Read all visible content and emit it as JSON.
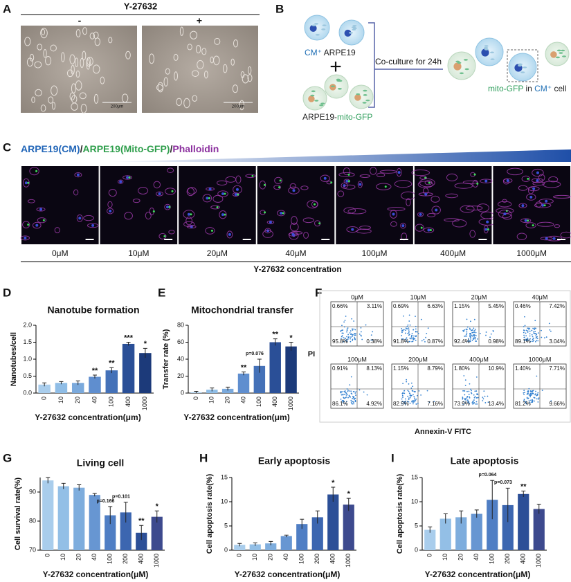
{
  "panel_a": {
    "label": "A",
    "title": "Y-27632",
    "minus": "-",
    "plus": "+",
    "scale_bars": [
      "200μm",
      "200μm"
    ]
  },
  "panel_b": {
    "label": "B",
    "cm_cells": [
      {
        "text": "CM⁺",
        "color": "#1f6fb5"
      },
      {
        "text": " ARPE19",
        "color": "#222222"
      }
    ],
    "gfp_cells": [
      {
        "text": "ARPE19-",
        "color": "#222222"
      },
      {
        "text": "mito-GFP",
        "color": "#2e9e5b"
      }
    ],
    "step": "Co-culture for 24h",
    "result": [
      {
        "text": "mito-GFP",
        "color": "#2e9e5b"
      },
      {
        "text": " in ",
        "color": "#222222"
      },
      {
        "text": "CM⁺",
        "color": "#1f6fb5"
      },
      {
        "text": " cell",
        "color": "#222222"
      }
    ]
  },
  "panel_c": {
    "label": "C",
    "legend": [
      {
        "text": "ARPE19(CM)",
        "color": "#2266b8"
      },
      {
        "text": "/",
        "color": "#222222"
      },
      {
        "text": "ARPE19(Mito-GFP)",
        "color": "#2e9e4b"
      },
      {
        "text": "/",
        "color": "#222222"
      },
      {
        "text": "Phalloidin",
        "color": "#8b2f9e"
      }
    ],
    "concentrations": [
      "0μM",
      "10μM",
      "20μM",
      "40μM",
      "100μM",
      "400μM",
      "1000μM"
    ],
    "xlabel": "Y-27632 concentration"
  },
  "panel_f": {
    "label": "F",
    "ylabel": "PI",
    "xlabel": "Annexin-V FITC",
    "plots": [
      {
        "title": "0μM",
        "quadrants": [
          "0.66%",
          "3.11%",
          "95.8%",
          "0.38%"
        ]
      },
      {
        "title": "10μM",
        "quadrants": [
          "0.69%",
          "6.63%",
          "91.8%",
          "0.87%"
        ]
      },
      {
        "title": "20μM",
        "quadrants": [
          "1.15%",
          "5.45%",
          "92.4%",
          "0.98%"
        ]
      },
      {
        "title": "40μM",
        "quadrants": [
          "0.46%",
          "7.42%",
          "89.1%",
          "3.04%"
        ]
      },
      {
        "title": "100μM",
        "quadrants": [
          "0.91%",
          "8.13%",
          "86.1%",
          "4.92%"
        ]
      },
      {
        "title": "200μM",
        "quadrants": [
          "1.15%",
          "8.79%",
          "82.9%",
          "7.16%"
        ]
      },
      {
        "title": "400μM",
        "quadrants": [
          "1.80%",
          "10.9%",
          "73.9%",
          "13.4%"
        ]
      },
      {
        "title": "1000μM",
        "quadrants": [
          "1.40%",
          "7.71%",
          "81.2%",
          "9.66%"
        ]
      }
    ]
  },
  "chart_data": [
    {
      "type": "bar",
      "label": "D",
      "title": "Nanotube formation",
      "ylabel": "Nanotubes/cell",
      "xlabel": "Y-27632 concentration(μm)",
      "categories": [
        "0",
        "10",
        "20",
        "40",
        "100",
        "400",
        "1000"
      ],
      "values": [
        0.25,
        0.3,
        0.3,
        0.48,
        0.67,
        1.45,
        1.18
      ],
      "errors": [
        0.05,
        0.04,
        0.06,
        0.05,
        0.08,
        0.05,
        0.14
      ],
      "colors": [
        "#a9cdec",
        "#8fbde6",
        "#7aa9dc",
        "#5f8ecf",
        "#4471b8",
        "#2a4f97",
        "#1c3a7a"
      ],
      "annotations": [
        null,
        null,
        null,
        "**",
        "**",
        "***",
        "*"
      ],
      "ylim": [
        0,
        2.0
      ],
      "yticks": [
        {
          "value": 0,
          "label": "0.0"
        },
        0.5,
        {
          "value": 1.0,
          "label": "1.0"
        },
        1.5,
        {
          "value": 2.0,
          "label": "2.0"
        }
      ]
    },
    {
      "type": "bar",
      "label": "E",
      "title": "Mitochondrial transfer",
      "ylabel": "Transfer rate (%)",
      "xlabel": "Y-27632 concentration(μm)",
      "categories": [
        "0",
        "10",
        "20",
        "40",
        "100",
        "400",
        "1000"
      ],
      "values": [
        1,
        4,
        5,
        23,
        32,
        60,
        55
      ],
      "errors": [
        1,
        2,
        2,
        2,
        8,
        4,
        5
      ],
      "colors": [
        "#a9cdec",
        "#8fbde6",
        "#7aa9dc",
        "#5f8ecf",
        "#4471b8",
        "#2a4f97",
        "#1c3a7a"
      ],
      "annotations": [
        null,
        null,
        null,
        "**",
        "p=0.076",
        "**",
        "*"
      ],
      "ylim": [
        0,
        80
      ],
      "yticks": [
        0,
        20,
        40,
        60,
        80
      ]
    },
    {
      "type": "bar",
      "label": "G",
      "title": "Living cell",
      "ylabel": "Cell survival rate(%)",
      "xlabel": "Y-27632 concentration(μM)",
      "categories": [
        "0",
        "10",
        "20",
        "40",
        "100",
        "200",
        "400",
        "1000"
      ],
      "values": [
        94,
        92,
        91.5,
        89,
        82,
        83,
        76,
        81.5
      ],
      "errors": [
        1,
        1,
        1,
        0.5,
        3,
        3.5,
        2.5,
        2
      ],
      "colors": [
        "#a9cdec",
        "#93bfe6",
        "#7eaddd",
        "#6796d2",
        "#4f7ec4",
        "#3c66b0",
        "#2c4f97",
        "#3d4a8e"
      ],
      "annotations": [
        null,
        null,
        null,
        null,
        "p=0.166",
        "p=0.101",
        "**",
        "*"
      ],
      "ylim": [
        70,
        95
      ],
      "yticks": [
        70,
        80,
        90
      ]
    },
    {
      "type": "bar",
      "label": "H",
      "title": "Early apoptosis",
      "ylabel": "Cell apoptosis rate(%)",
      "xlabel": "Y-27632 concentration(μM)",
      "categories": [
        "0",
        "10",
        "20",
        "40",
        "100",
        "200",
        "400",
        "1000"
      ],
      "values": [
        1.1,
        1.2,
        1.4,
        2.9,
        5.4,
        6.8,
        11.5,
        9.4
      ],
      "errors": [
        0.3,
        0.3,
        0.4,
        0.2,
        1,
        1.3,
        1.5,
        1.3
      ],
      "colors": [
        "#a9cdec",
        "#93bfe6",
        "#7eaddd",
        "#6796d2",
        "#4f7ec4",
        "#3c66b0",
        "#2c4f97",
        "#3d4a8e"
      ],
      "annotations": [
        null,
        null,
        null,
        null,
        null,
        null,
        "*",
        "*"
      ],
      "ylim": [
        0,
        15
      ],
      "yticks": [
        0,
        5,
        10,
        15
      ]
    },
    {
      "type": "bar",
      "label": "I",
      "title": "Late apoptosis",
      "ylabel": "Cell apoptosis rate(%)",
      "xlabel": "Y-27632 concentration(μM)",
      "categories": [
        "0",
        "10",
        "20",
        "40",
        "100",
        "200",
        "400",
        "1000"
      ],
      "values": [
        4.2,
        6.5,
        6.8,
        7.5,
        10.4,
        9.3,
        11.6,
        8.5
      ],
      "errors": [
        0.6,
        1,
        1.3,
        0.8,
        4,
        3.5,
        0.6,
        1
      ],
      "colors": [
        "#a9cdec",
        "#93bfe6",
        "#7eaddd",
        "#6796d2",
        "#4f7ec4",
        "#3c66b0",
        "#2c4f97",
        "#3d4a8e"
      ],
      "annotations": [
        null,
        null,
        null,
        null,
        "p=0.064",
        "p=0.073",
        "**",
        null
      ],
      "ylim": [
        0,
        15
      ],
      "yticks": [
        0,
        5,
        10,
        15
      ]
    }
  ]
}
